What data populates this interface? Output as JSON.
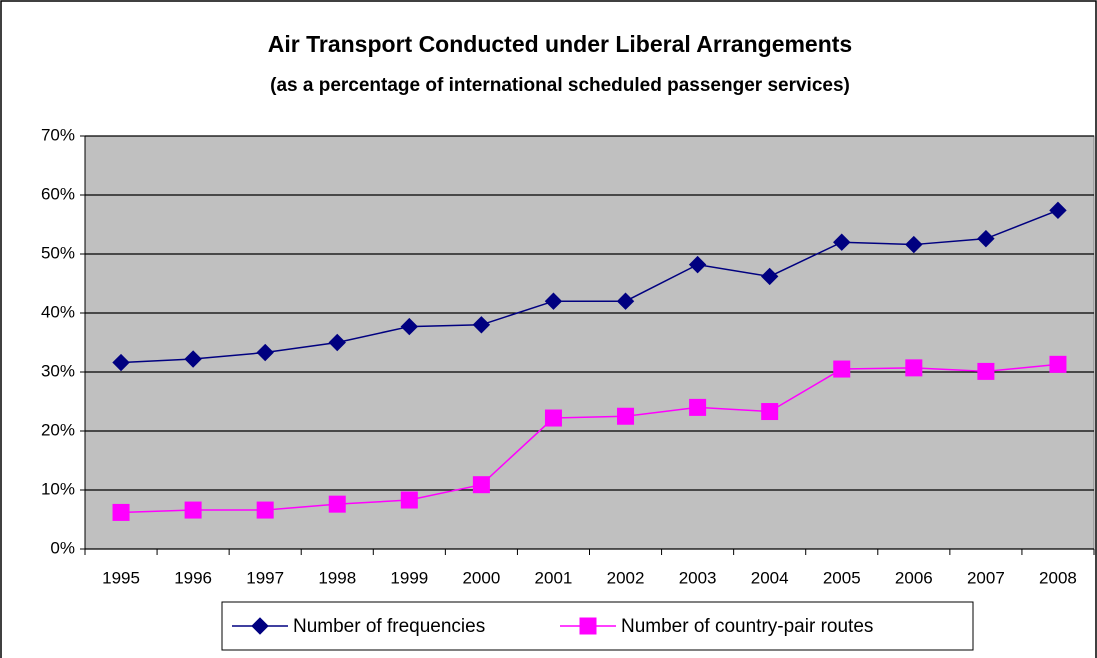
{
  "chart_data": {
    "type": "line",
    "title": "Air Transport Conducted under Liberal Arrangements",
    "subtitle": "(as a percentage of international scheduled passenger services)",
    "categories": [
      "1995",
      "1996",
      "1997",
      "1998",
      "1999",
      "2000",
      "2001",
      "2002",
      "2003",
      "2004",
      "2005",
      "2006",
      "2007",
      "2008"
    ],
    "series": [
      {
        "name": "Number of frequencies",
        "color": "#000080",
        "marker": "diamond",
        "values": [
          31.6,
          32.2,
          33.3,
          35.0,
          37.7,
          38.0,
          42.0,
          42.0,
          48.2,
          46.2,
          52.0,
          51.6,
          52.6,
          57.4
        ]
      },
      {
        "name": "Number of country-pair routes",
        "color": "#ff00ff",
        "marker": "square",
        "values": [
          6.2,
          6.6,
          6.6,
          7.6,
          8.3,
          10.9,
          22.2,
          22.5,
          24.0,
          23.3,
          30.5,
          30.7,
          30.1,
          31.3
        ]
      }
    ],
    "ylim": [
      0,
      70
    ],
    "yticks": [
      {
        "value": 0,
        "label": "0%"
      },
      {
        "value": 10,
        "label": "10%"
      },
      {
        "value": 20,
        "label": "20%"
      },
      {
        "value": 30,
        "label": "30%"
      },
      {
        "value": 40,
        "label": "40%"
      },
      {
        "value": 50,
        "label": "50%"
      },
      {
        "value": 60,
        "label": "60%"
      },
      {
        "value": 70,
        "label": "70%"
      }
    ],
    "grid": true,
    "legend": "bottom"
  }
}
